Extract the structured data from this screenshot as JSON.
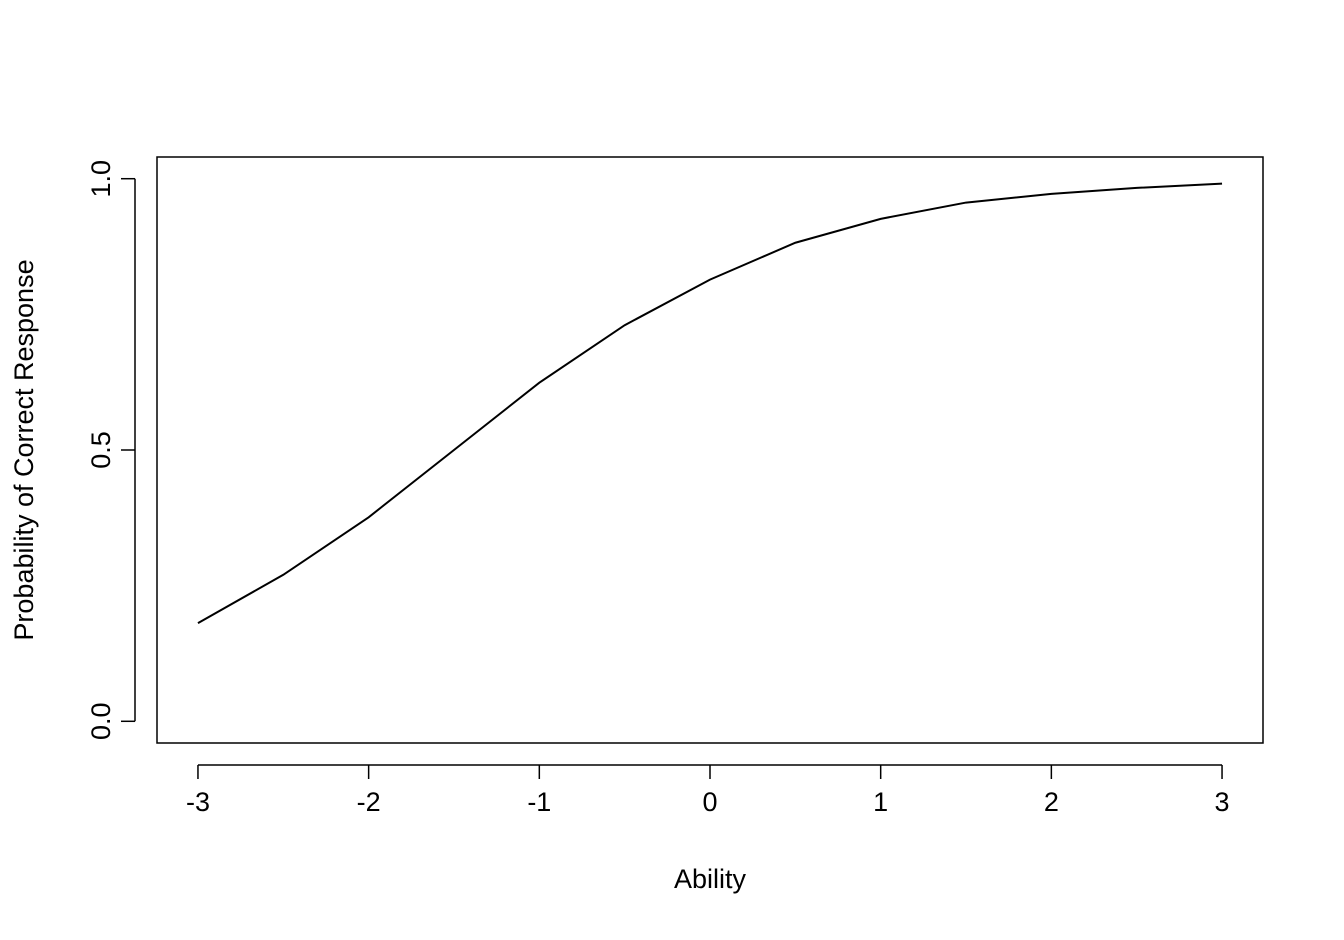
{
  "chart_data": {
    "type": "line",
    "x_label": "Ability",
    "y_label": "Probability of Correct Response",
    "x": [
      -3,
      -2.5,
      -2,
      -1.5,
      -1,
      -0.5,
      0,
      0.5,
      1,
      1.5,
      2,
      2.5,
      3
    ],
    "series": [
      {
        "color": "#000000",
        "values": [
          0.181,
          0.27,
          0.376,
          0.5,
          0.624,
          0.73,
          0.814,
          0.882,
          0.926,
          0.956,
          0.972,
          0.983,
          0.991
        ]
      }
    ],
    "xlim": [
      -3.24,
      3.24
    ],
    "ylim": [
      -0.04,
      1.04
    ],
    "xticks": [
      -3,
      -2,
      -1,
      0,
      1,
      2,
      3
    ],
    "yticks": [
      {
        "value": 0,
        "label": "0.0"
      },
      0.5,
      {
        "value": 1,
        "label": "1.0"
      }
    ],
    "grid": false
  }
}
